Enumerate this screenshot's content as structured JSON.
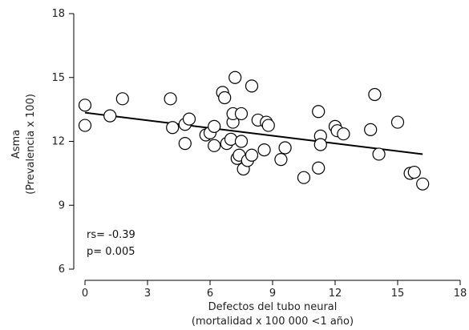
{
  "chart_data": {
    "type": "scatter",
    "title": "",
    "xlabel_lines": [
      "Defectos del tubo neural",
      "(mortalidad x 100 000 <1 año)"
    ],
    "ylabel_lines": [
      "Asma",
      "(Prevalencia x 100)"
    ],
    "xlim": [
      0,
      18
    ],
    "ylim": [
      6,
      18
    ],
    "xticks": [
      0,
      3,
      6,
      9,
      12,
      15,
      18
    ],
    "yticks": [
      6,
      9,
      12,
      15,
      18
    ],
    "points": [
      {
        "x": 0.0,
        "y": 13.7
      },
      {
        "x": 0.0,
        "y": 12.75
      },
      {
        "x": 1.2,
        "y": 13.2
      },
      {
        "x": 1.8,
        "y": 14.0
      },
      {
        "x": 4.1,
        "y": 14.0
      },
      {
        "x": 4.2,
        "y": 12.65
      },
      {
        "x": 4.8,
        "y": 12.8
      },
      {
        "x": 4.8,
        "y": 11.9
      },
      {
        "x": 5.0,
        "y": 13.05
      },
      {
        "x": 5.8,
        "y": 12.3
      },
      {
        "x": 6.0,
        "y": 12.4
      },
      {
        "x": 6.2,
        "y": 11.8
      },
      {
        "x": 6.2,
        "y": 12.7
      },
      {
        "x": 6.6,
        "y": 14.3
      },
      {
        "x": 6.7,
        "y": 14.05
      },
      {
        "x": 6.8,
        "y": 11.9
      },
      {
        "x": 7.0,
        "y": 12.1
      },
      {
        "x": 7.1,
        "y": 12.9
      },
      {
        "x": 7.2,
        "y": 15.0
      },
      {
        "x": 7.1,
        "y": 13.3
      },
      {
        "x": 7.3,
        "y": 11.2
      },
      {
        "x": 7.4,
        "y": 11.35
      },
      {
        "x": 7.5,
        "y": 13.3
      },
      {
        "x": 7.5,
        "y": 12.0
      },
      {
        "x": 7.6,
        "y": 10.7
      },
      {
        "x": 7.8,
        "y": 11.1
      },
      {
        "x": 8.0,
        "y": 11.35
      },
      {
        "x": 8.0,
        "y": 14.6
      },
      {
        "x": 8.3,
        "y": 13.0
      },
      {
        "x": 8.6,
        "y": 11.6
      },
      {
        "x": 8.7,
        "y": 12.9
      },
      {
        "x": 8.8,
        "y": 12.75
      },
      {
        "x": 9.4,
        "y": 11.15
      },
      {
        "x": 9.6,
        "y": 11.7
      },
      {
        "x": 10.5,
        "y": 10.3
      },
      {
        "x": 11.2,
        "y": 10.75
      },
      {
        "x": 11.2,
        "y": 13.4
      },
      {
        "x": 11.3,
        "y": 12.25
      },
      {
        "x": 11.3,
        "y": 11.85
      },
      {
        "x": 12.0,
        "y": 12.7
      },
      {
        "x": 12.1,
        "y": 12.5
      },
      {
        "x": 12.4,
        "y": 12.35
      },
      {
        "x": 13.7,
        "y": 12.55
      },
      {
        "x": 13.9,
        "y": 14.2
      },
      {
        "x": 14.1,
        "y": 11.4
      },
      {
        "x": 15.0,
        "y": 12.9
      },
      {
        "x": 15.6,
        "y": 10.5
      },
      {
        "x": 15.8,
        "y": 10.55
      },
      {
        "x": 16.2,
        "y": 10.0
      }
    ],
    "trendline": {
      "x": [
        0,
        16.2
      ],
      "y": [
        13.35,
        11.4
      ]
    },
    "annotations": [
      "rs= -0.39",
      "p= 0.005"
    ],
    "grid": false,
    "legend": "none"
  }
}
